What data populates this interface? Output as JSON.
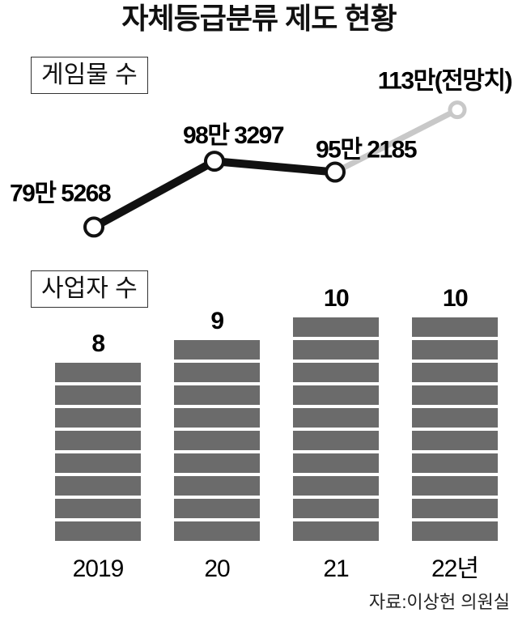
{
  "title": "자체등급분류 제도 현황",
  "source": "자료:이상헌 의원실",
  "chart_data": [
    {
      "type": "line",
      "label_box": "게임물 수",
      "categories": [
        "2019",
        "20",
        "21",
        "22년"
      ],
      "values": [
        79.5268,
        98.3297,
        95.2185,
        113
      ],
      "unit": "만",
      "data_labels": [
        "79만 5268",
        "98만 3297",
        "95만 2185",
        "113만(전망치)"
      ],
      "projected_from_index": 2,
      "colors": {
        "actual": "#111111",
        "projected": "#c8c8c8"
      }
    },
    {
      "type": "bar",
      "label_box": "사업자 수",
      "categories": [
        "2019",
        "20",
        "21",
        "22년"
      ],
      "values": [
        8,
        9,
        10,
        10
      ],
      "data_labels": [
        "8",
        "9",
        "10",
        "10"
      ],
      "bar_style": "stacked-units",
      "color": "#6b6b6b"
    }
  ]
}
